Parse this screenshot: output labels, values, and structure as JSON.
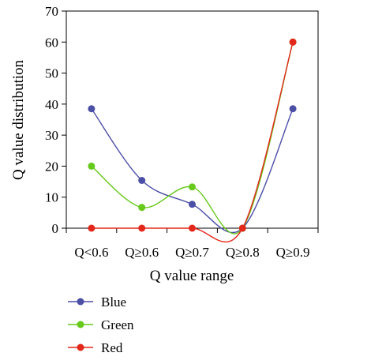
{
  "chart_data": {
    "type": "line",
    "categories": [
      "Q<0.6",
      "Q≥0.6",
      "Q≥0.7",
      "Q≥0.8",
      "Q≥0.9"
    ],
    "series": [
      {
        "name": "Blue",
        "color": "#4b4fa6",
        "values": [
          38.5,
          15.4,
          7.7,
          0,
          38.5
        ]
      },
      {
        "name": "Green",
        "color": "#66c91b",
        "values": [
          20,
          6.7,
          13.3,
          0,
          60
        ]
      },
      {
        "name": "Red",
        "color": "#e3281b",
        "values": [
          0,
          0,
          0,
          0,
          60
        ]
      }
    ],
    "xlabel": "Q value range",
    "ylabel": "Q value distribution",
    "ylim": [
      0,
      70
    ],
    "yticks": [
      0,
      10,
      20,
      30,
      40,
      50,
      60,
      70
    ],
    "grid": false,
    "smooth": true,
    "legend_position": "bottom-left"
  }
}
